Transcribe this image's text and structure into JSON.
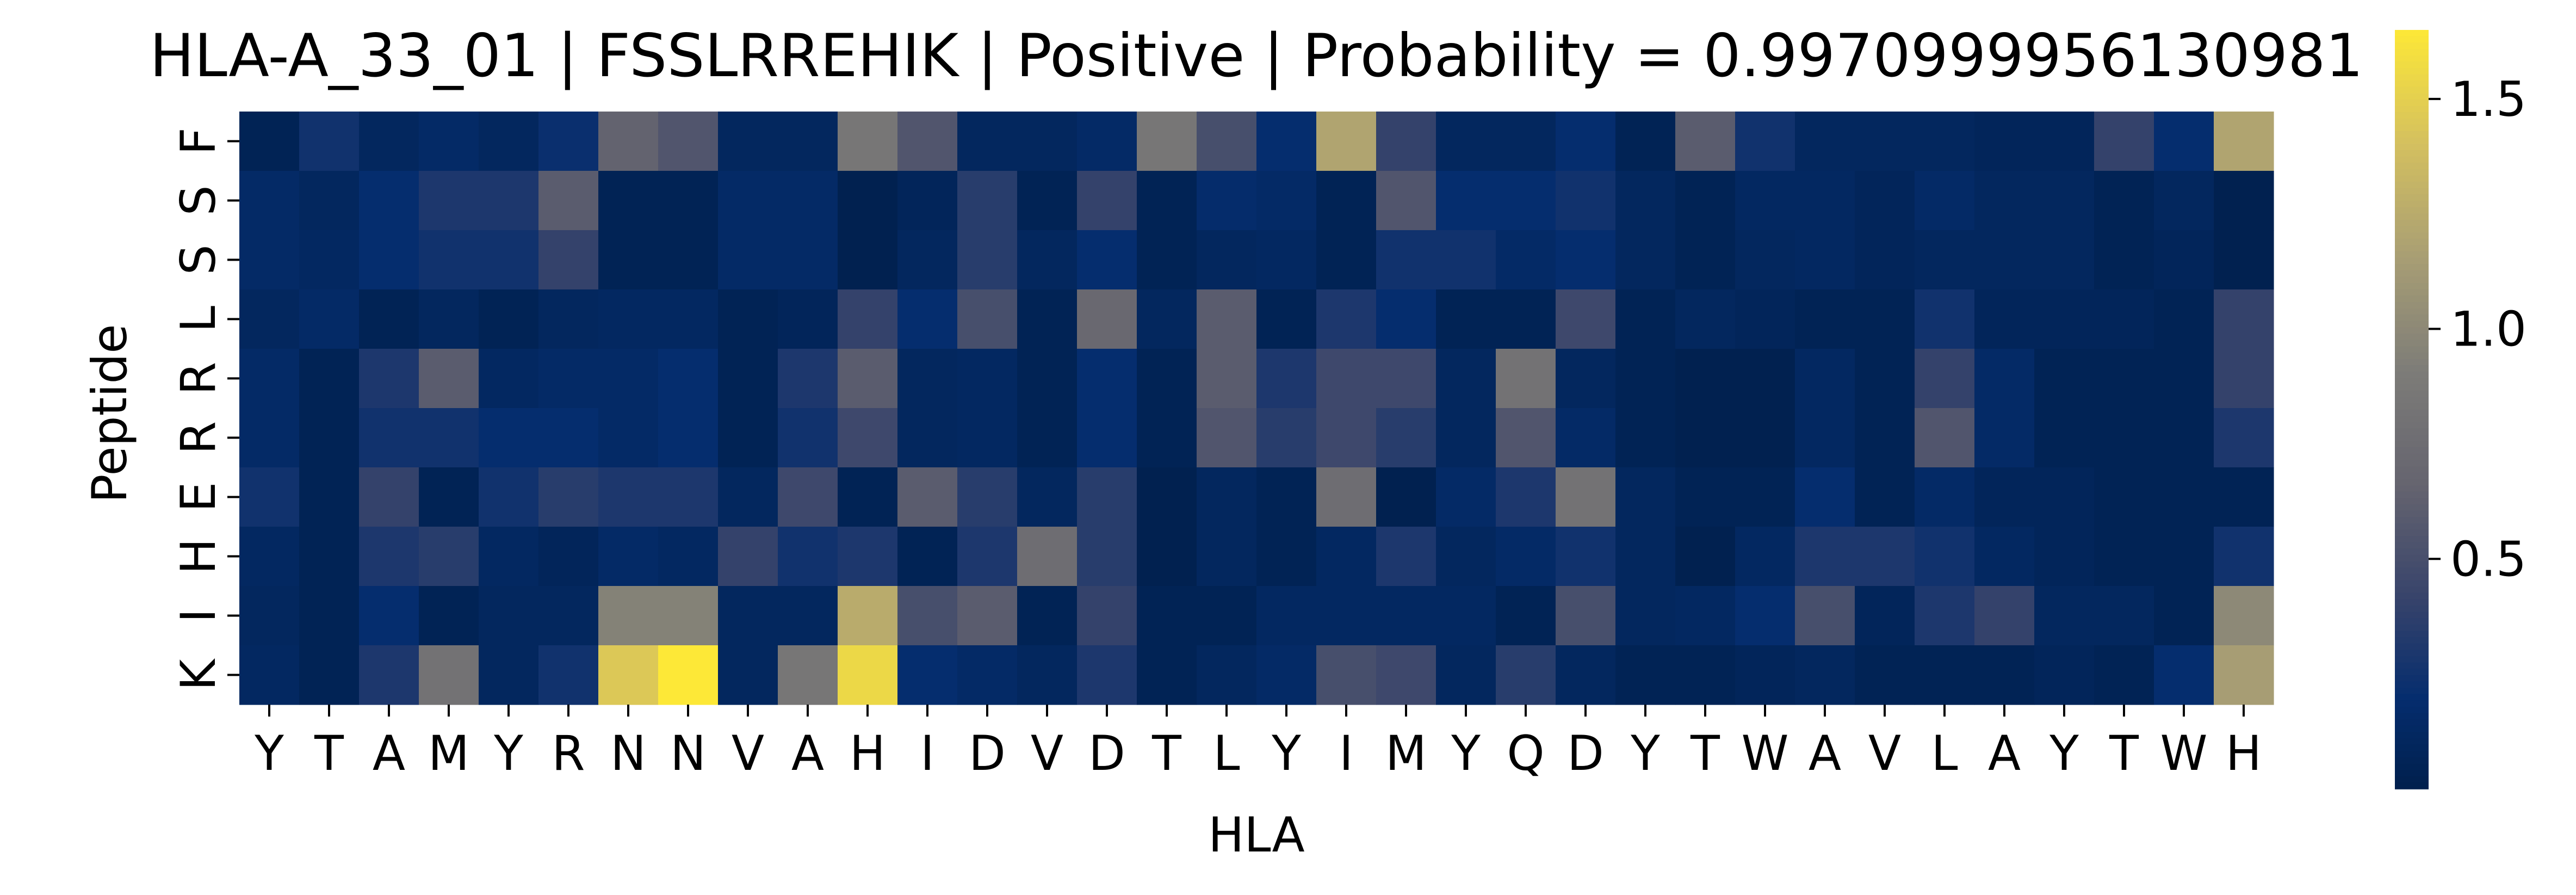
{
  "chart_data": {
    "type": "heatmap",
    "title": "HLA-A_33_01 | FSSLRREHIK | Positive | Probability = 0.9970999956130981",
    "xlabel": "HLA",
    "ylabel": "Peptide",
    "x_categories": [
      "Y",
      "T",
      "A",
      "M",
      "Y",
      "R",
      "N",
      "N",
      "V",
      "A",
      "H",
      "I",
      "D",
      "V",
      "D",
      "T",
      "L",
      "Y",
      "I",
      "M",
      "Y",
      "Q",
      "D",
      "Y",
      "T",
      "W",
      "A",
      "V",
      "L",
      "A",
      "Y",
      "T",
      "W",
      "H"
    ],
    "y_categories": [
      "F",
      "S",
      "S",
      "L",
      "R",
      "R",
      "E",
      "H",
      "I",
      "K"
    ],
    "values": [
      [
        0.05,
        0.25,
        0.1,
        0.15,
        0.1,
        0.22,
        0.65,
        0.55,
        0.1,
        0.1,
        0.85,
        0.55,
        0.1,
        0.1,
        0.15,
        0.85,
        0.5,
        0.2,
        1.2,
        0.4,
        0.1,
        0.1,
        0.2,
        0.05,
        0.6,
        0.25,
        0.1,
        0.1,
        0.1,
        0.08,
        0.08,
        0.4,
        0.2,
        1.2
      ],
      [
        0.15,
        0.1,
        0.2,
        0.3,
        0.3,
        0.6,
        0.05,
        0.05,
        0.15,
        0.15,
        0.02,
        0.08,
        0.35,
        0.05,
        0.4,
        0.05,
        0.18,
        0.15,
        0.05,
        0.55,
        0.2,
        0.2,
        0.25,
        0.1,
        0.05,
        0.12,
        0.12,
        0.08,
        0.15,
        0.1,
        0.1,
        0.05,
        0.1,
        0.02
      ],
      [
        0.15,
        0.12,
        0.2,
        0.25,
        0.25,
        0.4,
        0.05,
        0.05,
        0.15,
        0.15,
        0.02,
        0.1,
        0.35,
        0.1,
        0.2,
        0.05,
        0.1,
        0.12,
        0.05,
        0.25,
        0.25,
        0.15,
        0.2,
        0.1,
        0.05,
        0.1,
        0.12,
        0.08,
        0.1,
        0.1,
        0.1,
        0.05,
        0.08,
        0.02
      ],
      [
        0.1,
        0.15,
        0.05,
        0.1,
        0.05,
        0.1,
        0.12,
        0.12,
        0.05,
        0.08,
        0.4,
        0.2,
        0.5,
        0.05,
        0.7,
        0.1,
        0.6,
        0.05,
        0.3,
        0.2,
        0.05,
        0.05,
        0.45,
        0.05,
        0.1,
        0.08,
        0.05,
        0.05,
        0.25,
        0.08,
        0.08,
        0.08,
        0.05,
        0.4
      ],
      [
        0.15,
        0.05,
        0.3,
        0.6,
        0.12,
        0.15,
        0.15,
        0.2,
        0.05,
        0.3,
        0.6,
        0.1,
        0.12,
        0.05,
        0.2,
        0.05,
        0.6,
        0.3,
        0.45,
        0.45,
        0.1,
        0.8,
        0.1,
        0.05,
        0.02,
        0.02,
        0.12,
        0.05,
        0.4,
        0.15,
        0.05,
        0.05,
        0.05,
        0.4
      ],
      [
        0.15,
        0.05,
        0.25,
        0.25,
        0.2,
        0.2,
        0.15,
        0.2,
        0.05,
        0.25,
        0.45,
        0.1,
        0.12,
        0.05,
        0.2,
        0.05,
        0.55,
        0.35,
        0.45,
        0.35,
        0.1,
        0.55,
        0.15,
        0.05,
        0.02,
        0.02,
        0.12,
        0.05,
        0.55,
        0.15,
        0.05,
        0.05,
        0.05,
        0.3
      ],
      [
        0.25,
        0.05,
        0.4,
        0.05,
        0.25,
        0.35,
        0.3,
        0.3,
        0.1,
        0.45,
        0.05,
        0.6,
        0.35,
        0.1,
        0.35,
        0.02,
        0.1,
        0.05,
        0.75,
        0.02,
        0.15,
        0.3,
        0.8,
        0.1,
        0.05,
        0.05,
        0.2,
        0.05,
        0.15,
        0.08,
        0.08,
        0.05,
        0.05,
        0.05
      ],
      [
        0.12,
        0.05,
        0.3,
        0.35,
        0.12,
        0.08,
        0.15,
        0.12,
        0.4,
        0.25,
        0.3,
        0.05,
        0.3,
        0.75,
        0.35,
        0.02,
        0.1,
        0.05,
        0.12,
        0.3,
        0.1,
        0.15,
        0.25,
        0.1,
        0.02,
        0.12,
        0.3,
        0.3,
        0.25,
        0.12,
        0.08,
        0.05,
        0.05,
        0.25
      ],
      [
        0.1,
        0.05,
        0.2,
        0.05,
        0.1,
        0.1,
        0.95,
        0.95,
        0.1,
        0.1,
        1.25,
        0.5,
        0.6,
        0.05,
        0.4,
        0.05,
        0.05,
        0.12,
        0.12,
        0.12,
        0.12,
        0.05,
        0.5,
        0.1,
        0.12,
        0.2,
        0.5,
        0.08,
        0.3,
        0.4,
        0.1,
        0.1,
        0.05,
        1.0
      ],
      [
        0.12,
        0.05,
        0.3,
        0.8,
        0.1,
        0.25,
        1.45,
        1.65,
        0.1,
        0.85,
        1.55,
        0.2,
        0.15,
        0.1,
        0.3,
        0.05,
        0.1,
        0.15,
        0.5,
        0.45,
        0.1,
        0.35,
        0.1,
        0.05,
        0.05,
        0.08,
        0.1,
        0.05,
        0.05,
        0.05,
        0.08,
        0.05,
        0.2,
        1.15
      ]
    ],
    "vmin": 0.0,
    "vmax": 1.65,
    "colormap": "cividis",
    "colorbar_ticks": [
      0.5,
      1.0,
      1.5
    ],
    "colorbar_tick_labels": [
      "0.5",
      "1.0",
      "1.5"
    ]
  }
}
